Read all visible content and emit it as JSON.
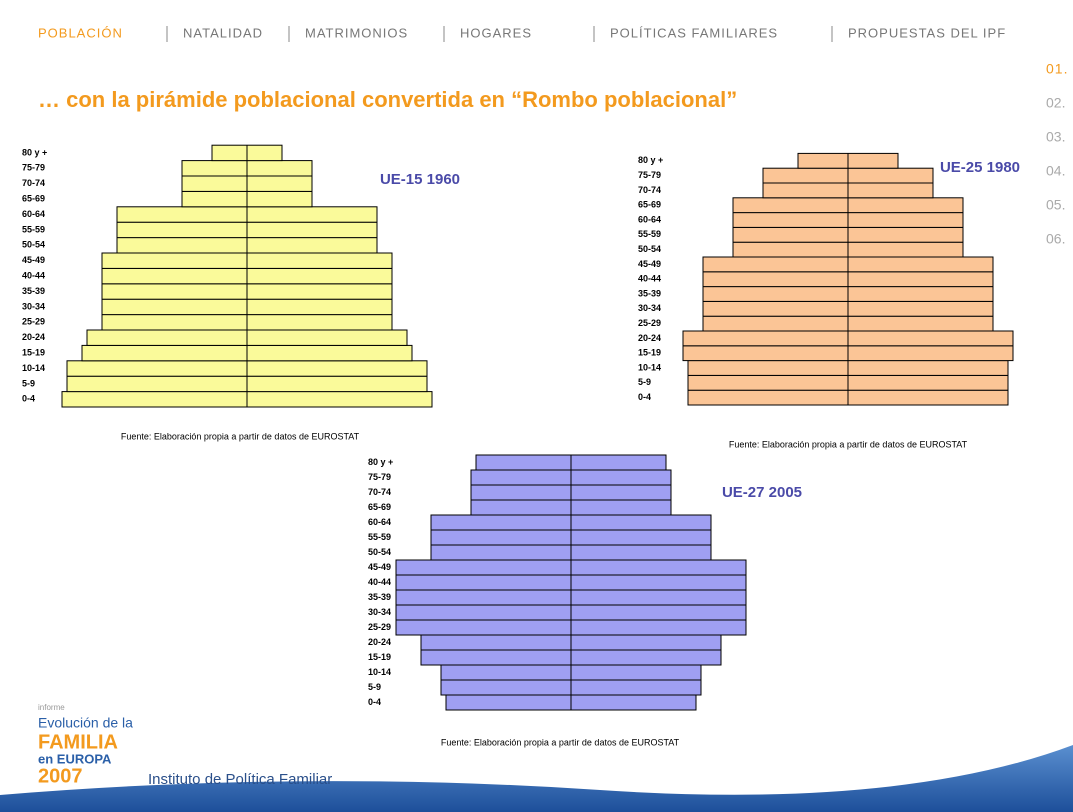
{
  "nav": [
    "POBLACIÓN",
    "NATALIDAD",
    "MATRIMONIOS",
    "HOGARES",
    "POLÍTICAS FAMILIARES",
    "PROPUESTAS DEL IPF"
  ],
  "side_menu": [
    "01.",
    "02.",
    "03.",
    "04.",
    "05.",
    "06."
  ],
  "title": "… con la pirámide poblacional convertida en “Rombo poblacional”",
  "logo": {
    "small": "informe",
    "line1": "Evolución de la",
    "line2": "FAMILIA",
    "line3": "en EUROPA",
    "year": "2007",
    "institute": "Instituto de Política Familiar"
  },
  "chart_data": [
    {
      "type": "pyramid",
      "title": "UE-15  1960",
      "source": "Fuente: Elaboración propia a partir de datos de EUROSTAT",
      "color": "#fafa9a",
      "categories": [
        "0-4",
        "5-9",
        "10-14",
        "15-19",
        "20-24",
        "25-29",
        "30-34",
        "35-39",
        "40-44",
        "45-49",
        "50-54",
        "55-59",
        "60-64",
        "65-69",
        "70-74",
        "75-79",
        "80 y +"
      ],
      "values": [
        3.7,
        3.6,
        3.6,
        3.3,
        3.2,
        2.9,
        2.9,
        2.9,
        2.9,
        2.9,
        2.6,
        2.6,
        2.6,
        1.3,
        1.3,
        1.3,
        0.7
      ],
      "xlim": [
        0,
        4
      ]
    },
    {
      "type": "pyramid",
      "title": "UE-25  1980",
      "source": "Fuente: Elaboración propia a partir de datos de EUROSTAT",
      "color": "#fbc596",
      "categories": [
        "0-4",
        "5-9",
        "10-14",
        "15-19",
        "20-24",
        "25-29",
        "30-34",
        "35-39",
        "40-44",
        "45-49",
        "50-54",
        "55-59",
        "60-64",
        "65-69",
        "70-74",
        "75-79",
        "80 y +"
      ],
      "values": [
        3.2,
        3.2,
        3.2,
        3.3,
        3.3,
        2.9,
        2.9,
        2.9,
        2.9,
        2.9,
        2.3,
        2.3,
        2.3,
        2.3,
        1.7,
        1.7,
        1.0
      ],
      "xlim": [
        0,
        4
      ]
    },
    {
      "type": "pyramid",
      "title": "UE-27  2005",
      "source": "Fuente: Elaboración propia a partir de datos de EUROSTAT",
      "color": "#9f9ff2",
      "categories": [
        "0-4",
        "5-9",
        "10-14",
        "15-19",
        "20-24",
        "25-29",
        "30-34",
        "35-39",
        "40-44",
        "45-49",
        "50-54",
        "55-59",
        "60-64",
        "65-69",
        "70-74",
        "75-79",
        "80 y +"
      ],
      "values": [
        2.5,
        2.6,
        2.6,
        3.0,
        3.0,
        3.5,
        3.5,
        3.5,
        3.5,
        3.5,
        2.8,
        2.8,
        2.8,
        2.0,
        2.0,
        2.0,
        1.9
      ],
      "xlim": [
        0,
        4
      ]
    }
  ]
}
